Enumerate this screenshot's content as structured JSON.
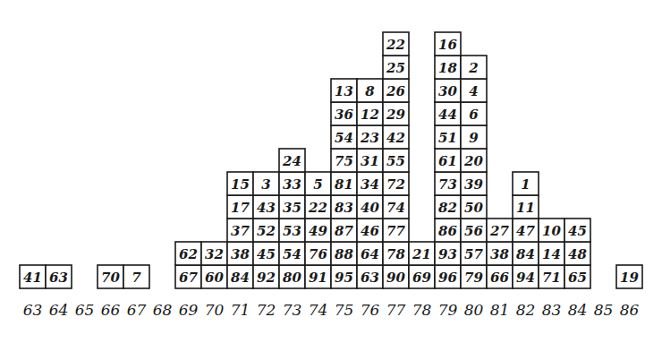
{
  "chart_data": {
    "type": "bar",
    "categories": [
      63,
      64,
      65,
      66,
      67,
      68,
      69,
      70,
      71,
      72,
      73,
      74,
      75,
      76,
      77,
      78,
      79,
      80,
      81,
      82,
      83,
      84,
      85,
      86
    ],
    "stacks": [
      [
        41
      ],
      [
        63
      ],
      [],
      [
        70
      ],
      [
        7
      ],
      [],
      [
        67,
        62
      ],
      [
        60,
        32
      ],
      [
        84,
        38,
        37,
        17,
        15
      ],
      [
        92,
        45,
        52,
        43,
        3
      ],
      [
        80,
        54,
        53,
        35,
        33,
        24
      ],
      [
        91,
        76,
        49,
        22,
        5
      ],
      [
        95,
        88,
        87,
        83,
        81,
        75,
        54,
        36,
        13
      ],
      [
        63,
        64,
        46,
        40,
        34,
        31,
        23,
        12,
        8
      ],
      [
        90,
        78,
        77,
        74,
        72,
        55,
        42,
        29,
        26,
        25,
        22
      ],
      [
        69,
        21
      ],
      [
        96,
        93,
        86,
        82,
        73,
        61,
        51,
        44,
        30,
        18,
        16
      ],
      [
        79,
        57,
        56,
        50,
        39,
        20,
        9,
        6,
        4,
        2
      ],
      [
        66,
        38,
        27
      ],
      [
        94,
        84,
        47,
        11,
        1
      ],
      [
        71,
        14,
        10
      ],
      [
        65,
        48,
        45
      ],
      [],
      [
        19
      ]
    ],
    "color": "#1a1a1a",
    "data_labels": true,
    "tick_labels": "x"
  }
}
